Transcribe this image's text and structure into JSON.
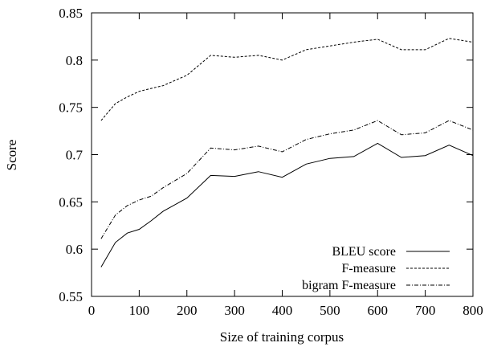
{
  "chart_data": {
    "type": "line",
    "xlabel": "Size of training corpus",
    "ylabel": "Score",
    "xlim": [
      0,
      800
    ],
    "ylim": [
      0.55,
      0.85
    ],
    "xticks": [
      0,
      100,
      200,
      300,
      400,
      500,
      600,
      700,
      800
    ],
    "yticks": [
      0.55,
      0.6,
      0.65,
      0.7,
      0.75,
      0.8,
      0.85
    ],
    "xtick_labels": [
      "0",
      "100",
      "200",
      "300",
      "400",
      "500",
      "600",
      "700",
      "800"
    ],
    "ytick_labels": [
      "0.55",
      "0.6",
      "0.65",
      "0.7",
      "0.75",
      "0.8",
      "0.85"
    ],
    "grid": false,
    "legend_position": "bottom-right",
    "x": [
      20,
      50,
      75,
      100,
      125,
      150,
      200,
      250,
      300,
      350,
      400,
      450,
      500,
      550,
      600,
      650,
      700,
      750,
      800
    ],
    "series": [
      {
        "name": "BLEU score",
        "style": "solid",
        "values": [
          0.581,
          0.607,
          0.617,
          0.621,
          0.63,
          0.64,
          0.654,
          0.678,
          0.677,
          0.682,
          0.676,
          0.69,
          0.696,
          0.698,
          0.712,
          0.697,
          0.699,
          0.71,
          0.699
        ]
      },
      {
        "name": "F-measure",
        "style": "dashed",
        "values": [
          0.736,
          0.754,
          0.761,
          0.767,
          0.77,
          0.773,
          0.784,
          0.805,
          0.803,
          0.805,
          0.8,
          0.811,
          0.815,
          0.819,
          0.822,
          0.811,
          0.811,
          0.823,
          0.819
        ]
      },
      {
        "name": "bigram F-measure",
        "style": "dashdot",
        "values": [
          0.611,
          0.636,
          0.646,
          0.652,
          0.656,
          0.665,
          0.68,
          0.707,
          0.705,
          0.709,
          0.703,
          0.716,
          0.722,
          0.726,
          0.736,
          0.721,
          0.723,
          0.736,
          0.726
        ]
      }
    ]
  }
}
